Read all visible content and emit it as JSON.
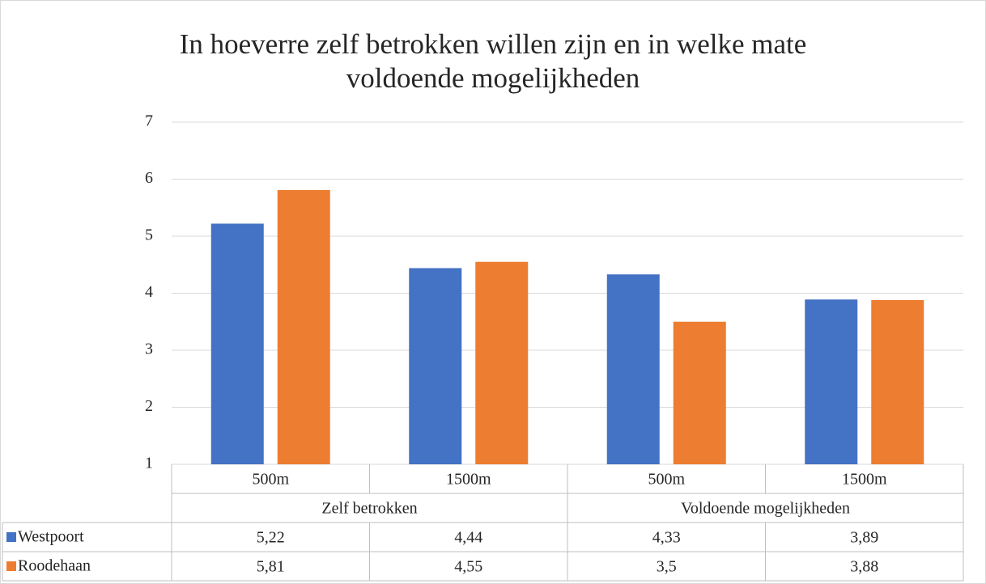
{
  "chart_data": {
    "type": "bar",
    "title": "In hoeverre zelf betrokken willen zijn en in welke mate voldoende mogelijkheden",
    "categories": [
      "500m",
      "1500m",
      "500m",
      "1500m"
    ],
    "category_groups": [
      "Zelf betrokken",
      "Voldoende mogelijkheden"
    ],
    "series": [
      {
        "name": "Westpoort",
        "color": "#4472c4",
        "values": [
          5.22,
          4.44,
          4.33,
          3.89
        ],
        "value_labels": [
          "5,22",
          "4,44",
          "4,33",
          "3,89"
        ]
      },
      {
        "name": "Roodehaan",
        "color": "#ed7d31",
        "values": [
          5.81,
          4.55,
          3.5,
          3.88
        ],
        "value_labels": [
          "5,81",
          "4,55",
          "3,5",
          "3,88"
        ]
      }
    ],
    "ylim": [
      1,
      7
    ],
    "yticks": [
      1,
      2,
      3,
      4,
      5,
      6,
      7
    ],
    "grid": true,
    "data_table": true
  }
}
